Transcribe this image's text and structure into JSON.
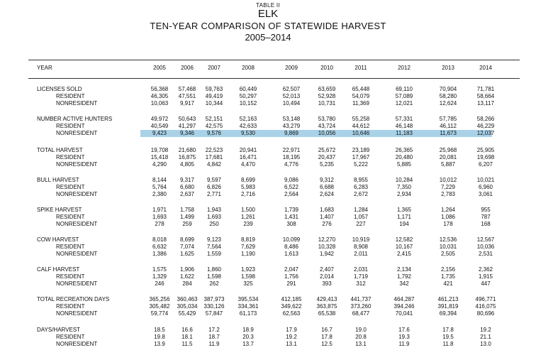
{
  "header": {
    "table_no": "TABLE II",
    "species": "ELK",
    "subtitle": "TEN-YEAR COMPARISON OF STATEWIDE HARVEST",
    "range": "2005–2014"
  },
  "columns": {
    "label": "YEAR",
    "years": [
      "2005",
      "2006",
      "2007",
      "2008",
      "2009",
      "2010",
      "2011",
      "2012",
      "2013",
      "2014"
    ]
  },
  "colors": {
    "highlight": "#a9d2e8"
  },
  "highlighted_row": "NUMBER ACTIVE HUNTERS / NONRESIDENT",
  "groups": [
    {
      "id": "licenses-sold",
      "rows": [
        {
          "label": "LICENSES SOLD",
          "values": [
            "56,368",
            "57,468",
            "59,763",
            "60,449",
            "62,507",
            "63,659",
            "65,448",
            "69,110",
            "70,904",
            "71,781"
          ]
        },
        {
          "label": "RESIDENT",
          "values": [
            "46,305",
            "47,551",
            "49,419",
            "50,297",
            "52,013",
            "52,928",
            "54,079",
            "57,089",
            "58,280",
            "58,664"
          ]
        },
        {
          "label": "NONRESIDENT",
          "values": [
            "10,063",
            "9,917",
            "10,344",
            "10,152",
            "10,494",
            "10,731",
            "11,369",
            "12,021",
            "12,624",
            "13,117"
          ]
        }
      ]
    },
    {
      "id": "active-hunters",
      "rows": [
        {
          "label": "NUMBER ACTIVE HUNTERS",
          "values": [
            "49,972",
            "50,643",
            "52,151",
            "52,163",
            "53,148",
            "53,780",
            "55,258",
            "57,331",
            "57,785",
            "58,266"
          ]
        },
        {
          "label": "RESIDENT",
          "values": [
            "40,549",
            "41,297",
            "42,575",
            "42,633",
            "43,279",
            "43,724",
            "44,612",
            "46,148",
            "46,112",
            "46,229"
          ]
        },
        {
          "label": "NONRESIDENT",
          "values": [
            "9,423",
            "9,346",
            "9,576",
            "9,530",
            "9,869",
            "10,056",
            "10,646",
            "11,183",
            "11,673",
            "12,037"
          ]
        }
      ]
    },
    {
      "id": "total-harvest",
      "rows": [
        {
          "label": "TOTAL HARVEST",
          "values": [
            "19,708",
            "21,680",
            "22,523",
            "20,941",
            "22,971",
            "25,672",
            "23,189",
            "26,365",
            "25,968",
            "25,905"
          ]
        },
        {
          "label": "RESIDENT",
          "values": [
            "15,418",
            "16,875",
            "17,681",
            "16,471",
            "18,195",
            "20,437",
            "17,967",
            "20,480",
            "20,081",
            "19,698"
          ]
        },
        {
          "label": "NONRESIDENT",
          "values": [
            "4,290",
            "4,805",
            "4,842",
            "4,470",
            "4,776",
            "5,235",
            "5,222",
            "5,885",
            "5,887",
            "6,207"
          ]
        }
      ]
    },
    {
      "id": "bull-harvest",
      "rows": [
        {
          "label": "BULL HARVEST",
          "values": [
            "8,144",
            "9,317",
            "9,597",
            "8,699",
            "9,086",
            "9,312",
            "8,955",
            "10,284",
            "10,012",
            "10,021"
          ]
        },
        {
          "label": "RESIDENT",
          "values": [
            "5,764",
            "6,680",
            "6,826",
            "5,983",
            "6,522",
            "6,688",
            "6,283",
            "7,350",
            "7,229",
            "6,960"
          ]
        },
        {
          "label": "NONRESIDENT",
          "values": [
            "2,380",
            "2,637",
            "2,771",
            "2,716",
            "2,564",
            "2,624",
            "2,672",
            "2,934",
            "2,783",
            "3,061"
          ]
        }
      ]
    },
    {
      "id": "spike-harvest",
      "rows": [
        {
          "label": "SPIKE HARVEST",
          "values": [
            "1,971",
            "1,758",
            "1,943",
            "1,500",
            "1,739",
            "1,683",
            "1,284",
            "1,365",
            "1,264",
            "955"
          ]
        },
        {
          "label": "RESIDENT",
          "values": [
            "1,693",
            "1,499",
            "1,693",
            "1,261",
            "1,431",
            "1,407",
            "1,057",
            "1,171",
            "1,086",
            "787"
          ]
        },
        {
          "label": "NONRESIDENT",
          "values": [
            "278",
            "259",
            "250",
            "239",
            "308",
            "276",
            "227",
            "194",
            "178",
            "168"
          ]
        }
      ]
    },
    {
      "id": "cow-harvest",
      "rows": [
        {
          "label": "COW HARVEST",
          "values": [
            "8,018",
            "8,699",
            "9,123",
            "8,819",
            "10,099",
            "12,270",
            "10,919",
            "12,582",
            "12,536",
            "12,567"
          ]
        },
        {
          "label": "RESIDENT",
          "values": [
            "6,632",
            "7,074",
            "7,564",
            "7,629",
            "8,486",
            "10,328",
            "8,908",
            "10,167",
            "10,031",
            "10,036"
          ]
        },
        {
          "label": "NONRESIDENT",
          "values": [
            "1,386",
            "1,625",
            "1,559",
            "1,190",
            "1,613",
            "1,942",
            "2,011",
            "2,415",
            "2,505",
            "2,531"
          ]
        }
      ]
    },
    {
      "id": "calf-harvest",
      "rows": [
        {
          "label": "CALF HARVEST",
          "values": [
            "1,575",
            "1,906",
            "1,860",
            "1,923",
            "2,047",
            "2,407",
            "2,031",
            "2,134",
            "2,156",
            "2,362"
          ]
        },
        {
          "label": "RESIDENT",
          "values": [
            "1,329",
            "1,622",
            "1,598",
            "1,598",
            "1,756",
            "2,014",
            "1,719",
            "1,792",
            "1,735",
            "1,915"
          ]
        },
        {
          "label": "NONRESIDENT",
          "values": [
            "246",
            "284",
            "262",
            "325",
            "291",
            "393",
            "312",
            "342",
            "421",
            "447"
          ]
        }
      ]
    },
    {
      "id": "recreation-days",
      "rows": [
        {
          "label": "TOTAL RECREATION DAYS",
          "values": [
            "365,256",
            "360,463",
            "387,973",
            "395,534",
            "412,185",
            "429,413",
            "441,737",
            "464,287",
            "461,213",
            "496,771"
          ]
        },
        {
          "label": "RESIDENT",
          "values": [
            "305,482",
            "305,034",
            "330,126",
            "334,361",
            "349,622",
            "363,875",
            "373,260",
            "394,246",
            "391,819",
            "416,075"
          ]
        },
        {
          "label": "NONRESIDENT",
          "values": [
            "59,774",
            "55,429",
            "57,847",
            "61,173",
            "62,563",
            "65,538",
            "68,477",
            "70,041",
            "69,394",
            "80,696"
          ]
        }
      ]
    },
    {
      "id": "days-per-harvest",
      "rows": [
        {
          "label": "DAYS/HARVEST",
          "values": [
            "18.5",
            "16.6",
            "17.2",
            "18.9",
            "17.9",
            "16.7",
            "19.0",
            "17.6",
            "17.8",
            "19.2"
          ]
        },
        {
          "label": "RESIDENT",
          "values": [
            "19.8",
            "18.1",
            "18.7",
            "20.3",
            "19.2",
            "17.8",
            "20.8",
            "19.3",
            "19.5",
            "21.1"
          ]
        },
        {
          "label": "NONRESIDENT",
          "values": [
            "13.9",
            "11.5",
            "11.9",
            "13.7",
            "13.1",
            "12.5",
            "13.1",
            "11.9",
            "11.8",
            "13.0"
          ]
        }
      ]
    }
  ]
}
